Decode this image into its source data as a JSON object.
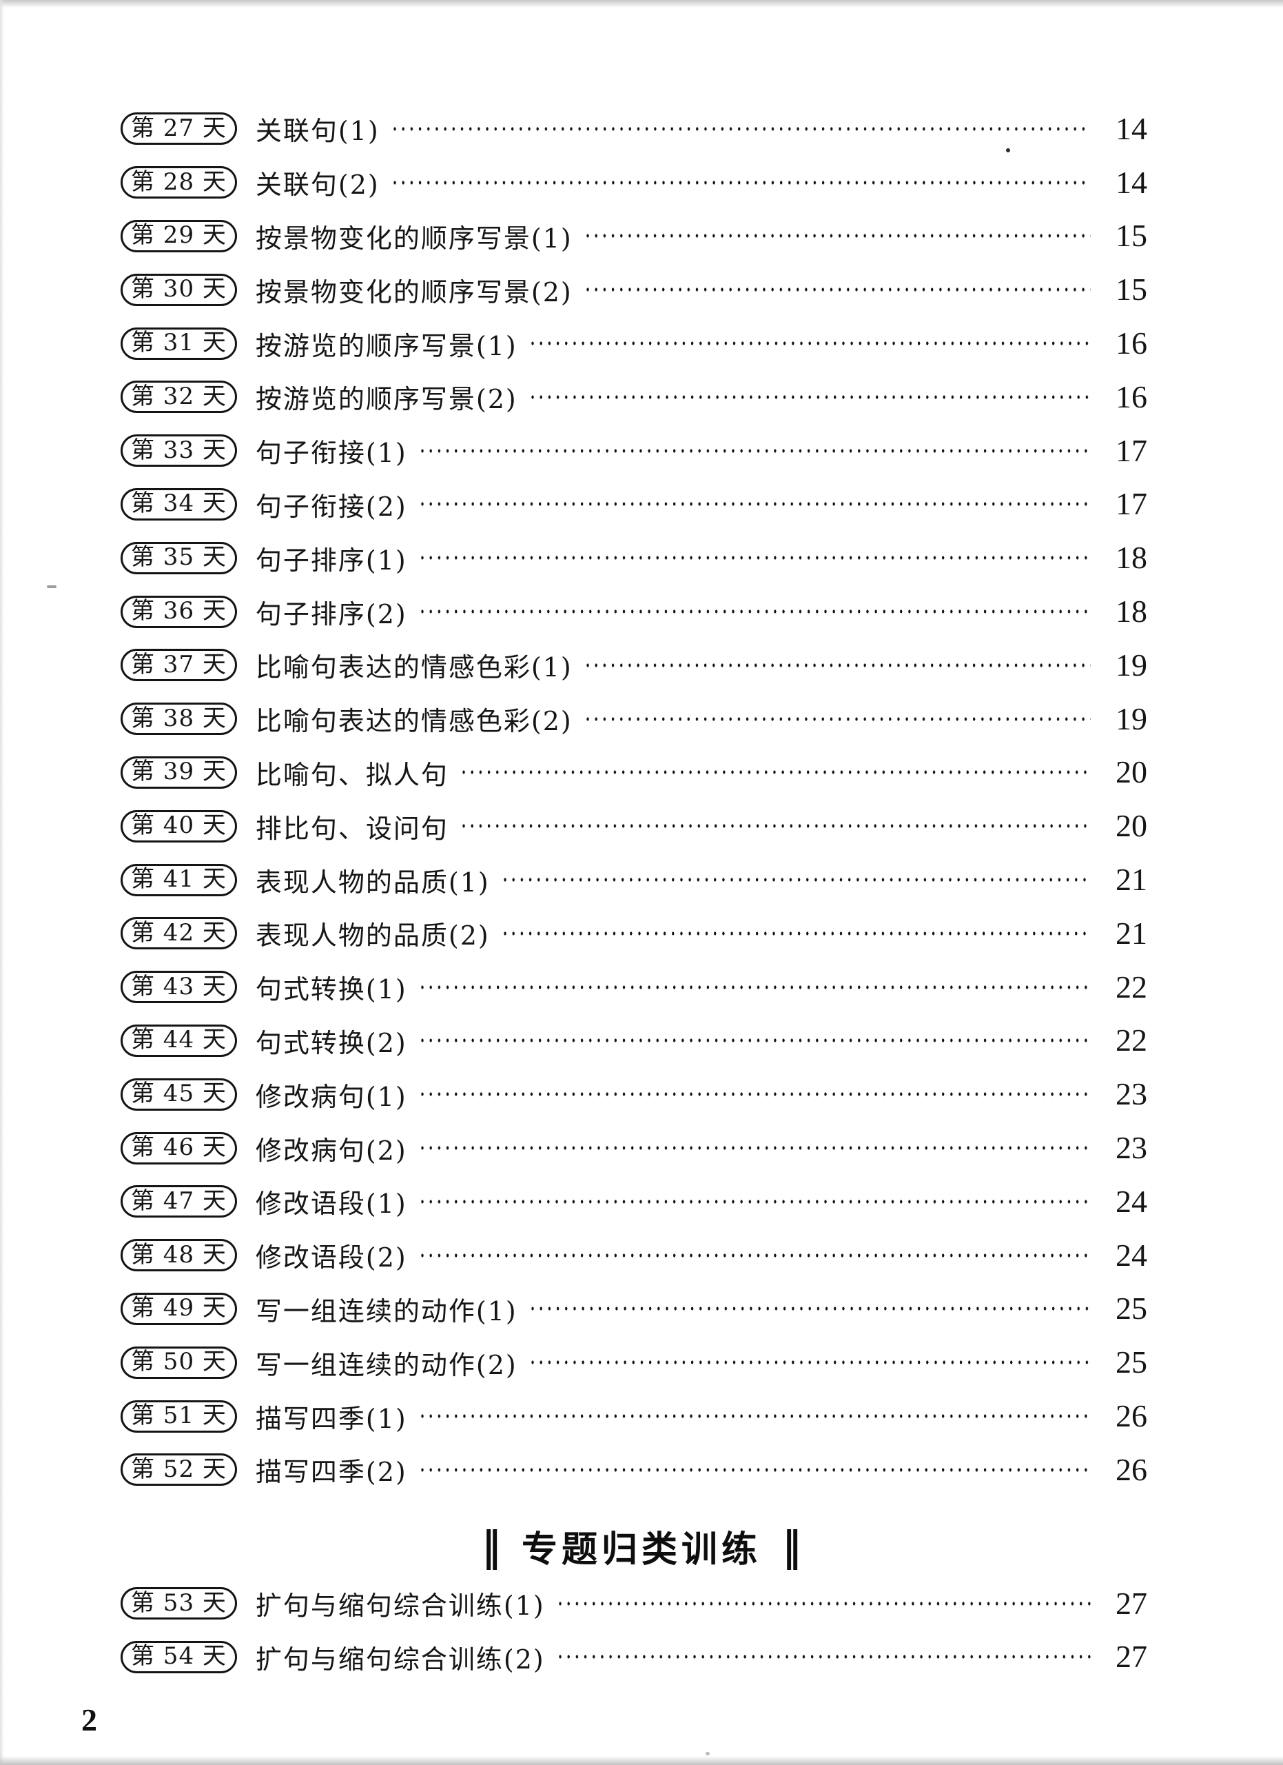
{
  "document": {
    "footer": {
      "page_number": "2"
    },
    "section_header": {
      "left_mark": "‖",
      "title": "专题归类训练",
      "right_mark": "‖"
    },
    "toc": {
      "daily": [
        {
          "day": "第 27 天",
          "title": "关联句(1)",
          "page": "14"
        },
        {
          "day": "第 28 天",
          "title": "关联句(2)",
          "page": "14"
        },
        {
          "day": "第 29 天",
          "title": "按景物变化的顺序写景(1)",
          "page": "15"
        },
        {
          "day": "第 30 天",
          "title": "按景物变化的顺序写景(2)",
          "page": "15"
        },
        {
          "day": "第 31 天",
          "title": "按游览的顺序写景(1)",
          "page": "16"
        },
        {
          "day": "第 32 天",
          "title": "按游览的顺序写景(2)",
          "page": "16"
        },
        {
          "day": "第 33 天",
          "title": "句子衔接(1)",
          "page": "17"
        },
        {
          "day": "第 34 天",
          "title": "句子衔接(2)",
          "page": "17"
        },
        {
          "day": "第 35 天",
          "title": "句子排序(1)",
          "page": "18"
        },
        {
          "day": "第 36 天",
          "title": "句子排序(2)",
          "page": "18"
        },
        {
          "day": "第 37 天",
          "title": "比喻句表达的情感色彩(1)",
          "page": "19"
        },
        {
          "day": "第 38 天",
          "title": "比喻句表达的情感色彩(2)",
          "page": "19"
        },
        {
          "day": "第 39 天",
          "title": "比喻句、拟人句",
          "page": "20"
        },
        {
          "day": "第 40 天",
          "title": "排比句、设问句",
          "page": "20"
        },
        {
          "day": "第 41 天",
          "title": "表现人物的品质(1)",
          "page": "21"
        },
        {
          "day": "第 42 天",
          "title": "表现人物的品质(2)",
          "page": "21"
        },
        {
          "day": "第 43 天",
          "title": "句式转换(1)",
          "page": "22"
        },
        {
          "day": "第 44 天",
          "title": "句式转换(2)",
          "page": "22"
        },
        {
          "day": "第 45 天",
          "title": "修改病句(1)",
          "page": "23"
        },
        {
          "day": "第 46 天",
          "title": "修改病句(2)",
          "page": "23"
        },
        {
          "day": "第 47 天",
          "title": "修改语段(1)",
          "page": "24"
        },
        {
          "day": "第 48 天",
          "title": "修改语段(2)",
          "page": "24"
        },
        {
          "day": "第 49 天",
          "title": "写一组连续的动作(1)",
          "page": "25"
        },
        {
          "day": "第 50 天",
          "title": "写一组连续的动作(2)",
          "page": "25"
        },
        {
          "day": "第 51 天",
          "title": "描写四季(1)",
          "page": "26"
        },
        {
          "day": "第 52 天",
          "title": "描写四季(2)",
          "page": "26"
        }
      ],
      "special": [
        {
          "day": "第 53 天",
          "title": "扩句与缩句综合训练(1)",
          "page": "27"
        },
        {
          "day": "第 54 天",
          "title": "扩句与缩句综合训练(2)",
          "page": "27"
        }
      ]
    }
  }
}
